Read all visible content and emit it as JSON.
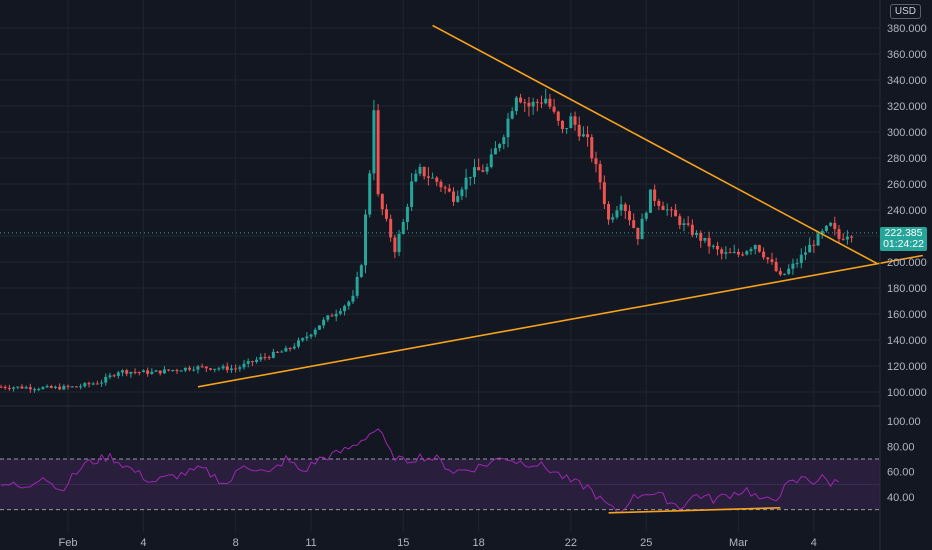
{
  "header": {
    "currency_label": "USD"
  },
  "last_price": {
    "value": "222.385",
    "countdown": "01:24:22"
  },
  "colors": {
    "background": "#131722",
    "up": "#26a69a",
    "down": "#ef5350",
    "trendline": "#f7a21b",
    "rsi_line": "#9c27b0",
    "rsi_band": "#2a1e3d",
    "grid": "#1f2430"
  },
  "chart_data": [
    {
      "type": "candlestick",
      "ylim": [
        100,
        390
      ],
      "y_ticks": [
        "380.000",
        "360.000",
        "340.000",
        "320.000",
        "300.000",
        "280.000",
        "260.000",
        "240.000",
        "220.000",
        "200.000",
        "180.000",
        "160.000",
        "140.000",
        "120.000",
        "100.000"
      ],
      "x_ticks": [
        "Feb",
        "4",
        "8",
        "11",
        "15",
        "18",
        "22",
        "25",
        "Mar",
        "4"
      ],
      "grid": true,
      "legend": "none",
      "anchors": [
        [
          0,
          104
        ],
        [
          12,
          103
        ],
        [
          18,
          104
        ],
        [
          24,
          108
        ],
        [
          28,
          116
        ],
        [
          36,
          115
        ],
        [
          46,
          119
        ],
        [
          56,
          118
        ],
        [
          62,
          126
        ],
        [
          68,
          132
        ],
        [
          72,
          140
        ],
        [
          76,
          152
        ],
        [
          80,
          162
        ],
        [
          84,
          172
        ],
        [
          86,
          200
        ],
        [
          88,
          270
        ],
        [
          89,
          320
        ],
        [
          90,
          250
        ],
        [
          92,
          230
        ],
        [
          94,
          210
        ],
        [
          96,
          230
        ],
        [
          98,
          260
        ],
        [
          100,
          270
        ],
        [
          104,
          262
        ],
        [
          108,
          250
        ],
        [
          112,
          268
        ],
        [
          116,
          272
        ],
        [
          120,
          300
        ],
        [
          123,
          330
        ],
        [
          126,
          320
        ],
        [
          130,
          326
        ],
        [
          134,
          300
        ],
        [
          136,
          310
        ],
        [
          140,
          292
        ],
        [
          143,
          262
        ],
        [
          145,
          232
        ],
        [
          148,
          248
        ],
        [
          152,
          220
        ],
        [
          155,
          252
        ],
        [
          159,
          240
        ],
        [
          163,
          228
        ],
        [
          167,
          218
        ],
        [
          172,
          206
        ],
        [
          176,
          206
        ],
        [
          180,
          214
        ],
        [
          184,
          198
        ],
        [
          186,
          188
        ],
        [
          190,
          200
        ],
        [
          193,
          212
        ],
        [
          196,
          222
        ],
        [
          198,
          228
        ],
        [
          200,
          218
        ],
        [
          202,
          222
        ]
      ],
      "trendlines": [
        {
          "from": [
            103,
            382
          ],
          "to": [
            209,
            199
          ]
        },
        {
          "from": [
            47,
            104
          ],
          "to": [
            220,
            205
          ]
        }
      ],
      "last_price": 222.385
    },
    {
      "type": "line",
      "title": "",
      "ylim": [
        25,
        100
      ],
      "y_ticks": [
        "100.00",
        "80.00",
        "60.00",
        "40.00"
      ],
      "band": [
        30,
        70
      ],
      "anchors": [
        [
          0,
          52
        ],
        [
          6,
          46
        ],
        [
          10,
          58
        ],
        [
          14,
          45
        ],
        [
          20,
          66
        ],
        [
          26,
          72
        ],
        [
          30,
          64
        ],
        [
          36,
          52
        ],
        [
          42,
          57
        ],
        [
          48,
          62
        ],
        [
          54,
          50
        ],
        [
          58,
          66
        ],
        [
          64,
          58
        ],
        [
          68,
          70
        ],
        [
          72,
          60
        ],
        [
          76,
          70
        ],
        [
          80,
          74
        ],
        [
          84,
          80
        ],
        [
          88,
          90
        ],
        [
          90,
          94
        ],
        [
          93,
          74
        ],
        [
          96,
          68
        ],
        [
          100,
          72
        ],
        [
          104,
          70
        ],
        [
          108,
          60
        ],
        [
          112,
          62
        ],
        [
          116,
          66
        ],
        [
          120,
          72
        ],
        [
          123,
          68
        ],
        [
          128,
          66
        ],
        [
          132,
          60
        ],
        [
          136,
          52
        ],
        [
          140,
          48
        ],
        [
          143,
          38
        ],
        [
          146,
          30
        ],
        [
          148,
          28
        ],
        [
          150,
          38
        ],
        [
          154,
          44
        ],
        [
          158,
          40
        ],
        [
          162,
          32
        ],
        [
          166,
          42
        ],
        [
          170,
          38
        ],
        [
          174,
          42
        ],
        [
          178,
          46
        ],
        [
          182,
          36
        ],
        [
          185,
          40
        ],
        [
          188,
          50
        ],
        [
          190,
          52
        ],
        [
          192,
          56
        ],
        [
          194,
          52
        ],
        [
          196,
          55
        ],
        [
          198,
          51
        ],
        [
          200,
          53
        ]
      ],
      "trendlines": [
        {
          "from": [
            145,
            27.5
          ],
          "to": [
            186,
            31.5
          ]
        }
      ]
    }
  ]
}
